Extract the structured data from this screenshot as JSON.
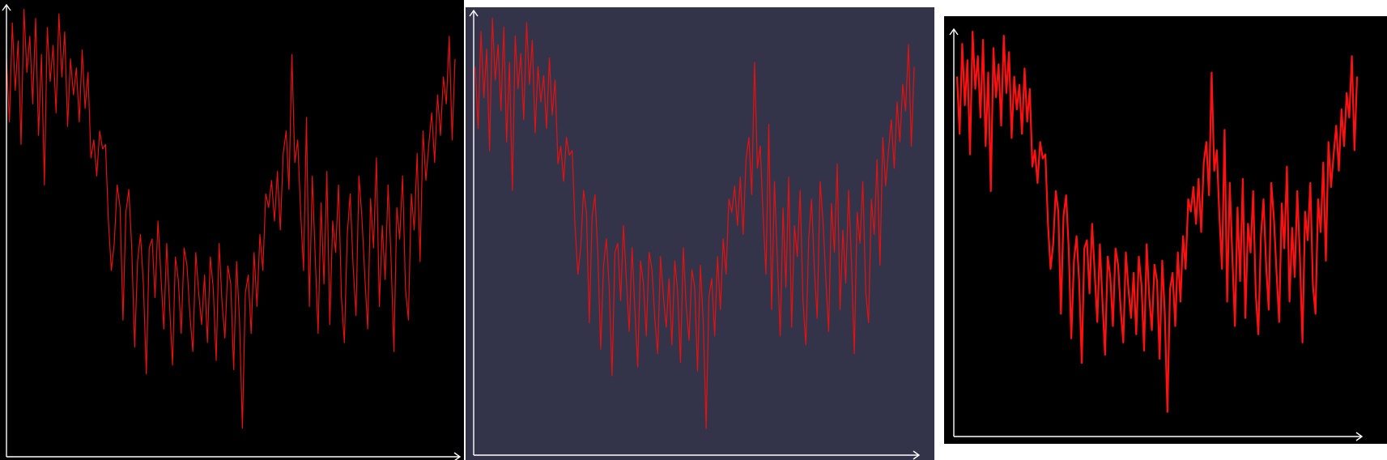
{
  "chart_data": [
    {
      "type": "line",
      "title": "",
      "xlabel": "",
      "ylabel": "",
      "series": [
        {
          "values": [
            0.88,
            0.74,
            0.96,
            0.81,
            0.92,
            0.69,
            0.99,
            0.85,
            0.93,
            0.78,
            0.97,
            0.71,
            0.89,
            0.6,
            0.95,
            0.83,
            0.91,
            0.76,
            0.98,
            0.84,
            0.94,
            0.73,
            0.88,
            0.8,
            0.86,
            0.74,
            0.9,
            0.77,
            0.85,
            0.66,
            0.7,
            0.62,
            0.72,
            0.68,
            0.69,
            0.52,
            0.41,
            0.47,
            0.6,
            0.55,
            0.3,
            0.54,
            0.59,
            0.46,
            0.24,
            0.43,
            0.49,
            0.38,
            0.18,
            0.46,
            0.48,
            0.35,
            0.52,
            0.4,
            0.28,
            0.47,
            0.33,
            0.2,
            0.44,
            0.39,
            0.27,
            0.46,
            0.42,
            0.31,
            0.23,
            0.45,
            0.36,
            0.29,
            0.4,
            0.25,
            0.44,
            0.37,
            0.21,
            0.47,
            0.34,
            0.26,
            0.42,
            0.38,
            0.19,
            0.43,
            0.3,
            0.06,
            0.36,
            0.4,
            0.27,
            0.45,
            0.33,
            0.49,
            0.41,
            0.58,
            0.55,
            0.61,
            0.52,
            0.63,
            0.5,
            0.67,
            0.72,
            0.59,
            0.89,
            0.65,
            0.7,
            0.54,
            0.41,
            0.75,
            0.33,
            0.62,
            0.44,
            0.27,
            0.56,
            0.38,
            0.63,
            0.29,
            0.52,
            0.45,
            0.6,
            0.35,
            0.25,
            0.49,
            0.58,
            0.42,
            0.31,
            0.62,
            0.53,
            0.4,
            0.28,
            0.57,
            0.46,
            0.66,
            0.33,
            0.51,
            0.39,
            0.6,
            0.44,
            0.23,
            0.55,
            0.48,
            0.62,
            0.37,
            0.3,
            0.58,
            0.5,
            0.67,
            0.43,
            0.72,
            0.61,
            0.69,
            0.76,
            0.65,
            0.8,
            0.71,
            0.84,
            0.78,
            0.93,
            0.7,
            0.88
          ]
        }
      ],
      "background": "#000000",
      "line_color": "#e8100f",
      "axis_color": "#ffffff",
      "grid": false
    },
    {
      "type": "line",
      "title": "",
      "xlabel": "",
      "ylabel": "",
      "series": [
        {
          "values": [
            0.88,
            0.74,
            0.96,
            0.81,
            0.92,
            0.69,
            0.99,
            0.85,
            0.93,
            0.78,
            0.97,
            0.71,
            0.89,
            0.6,
            0.95,
            0.83,
            0.91,
            0.76,
            0.98,
            0.84,
            0.94,
            0.73,
            0.88,
            0.8,
            0.86,
            0.74,
            0.9,
            0.77,
            0.85,
            0.66,
            0.7,
            0.62,
            0.72,
            0.68,
            0.69,
            0.52,
            0.41,
            0.47,
            0.6,
            0.55,
            0.3,
            0.54,
            0.59,
            0.46,
            0.24,
            0.43,
            0.49,
            0.38,
            0.18,
            0.46,
            0.48,
            0.35,
            0.52,
            0.4,
            0.28,
            0.47,
            0.33,
            0.2,
            0.44,
            0.39,
            0.27,
            0.46,
            0.42,
            0.31,
            0.23,
            0.45,
            0.36,
            0.29,
            0.4,
            0.25,
            0.44,
            0.37,
            0.21,
            0.47,
            0.34,
            0.26,
            0.42,
            0.38,
            0.19,
            0.43,
            0.3,
            0.06,
            0.36,
            0.4,
            0.27,
            0.45,
            0.33,
            0.49,
            0.41,
            0.58,
            0.55,
            0.61,
            0.52,
            0.63,
            0.5,
            0.67,
            0.72,
            0.59,
            0.89,
            0.65,
            0.7,
            0.54,
            0.41,
            0.75,
            0.33,
            0.62,
            0.44,
            0.27,
            0.56,
            0.38,
            0.63,
            0.29,
            0.52,
            0.45,
            0.6,
            0.35,
            0.25,
            0.49,
            0.58,
            0.42,
            0.31,
            0.62,
            0.53,
            0.4,
            0.28,
            0.57,
            0.46,
            0.66,
            0.33,
            0.51,
            0.39,
            0.6,
            0.44,
            0.23,
            0.55,
            0.48,
            0.62,
            0.37,
            0.3,
            0.58,
            0.5,
            0.67,
            0.43,
            0.72,
            0.61,
            0.69,
            0.76,
            0.65,
            0.8,
            0.71,
            0.84,
            0.78,
            0.93,
            0.7,
            0.88
          ]
        }
      ],
      "background": "#33344a",
      "line_color": "#e8100f",
      "axis_color": "#ffffff",
      "grid": false
    },
    {
      "type": "line",
      "title": "",
      "xlabel": "",
      "ylabel": "",
      "series": [
        {
          "values": [
            0.88,
            0.74,
            0.96,
            0.81,
            0.92,
            0.69,
            0.99,
            0.85,
            0.93,
            0.78,
            0.97,
            0.71,
            0.89,
            0.6,
            0.95,
            0.83,
            0.91,
            0.76,
            0.98,
            0.84,
            0.94,
            0.73,
            0.88,
            0.8,
            0.86,
            0.74,
            0.9,
            0.77,
            0.85,
            0.66,
            0.7,
            0.62,
            0.72,
            0.68,
            0.69,
            0.52,
            0.41,
            0.47,
            0.6,
            0.55,
            0.3,
            0.54,
            0.59,
            0.46,
            0.24,
            0.43,
            0.49,
            0.38,
            0.18,
            0.46,
            0.48,
            0.35,
            0.52,
            0.4,
            0.28,
            0.47,
            0.33,
            0.2,
            0.44,
            0.39,
            0.27,
            0.46,
            0.42,
            0.31,
            0.23,
            0.45,
            0.36,
            0.29,
            0.4,
            0.25,
            0.44,
            0.37,
            0.21,
            0.47,
            0.34,
            0.26,
            0.42,
            0.38,
            0.19,
            0.43,
            0.3,
            0.06,
            0.36,
            0.4,
            0.27,
            0.45,
            0.33,
            0.49,
            0.41,
            0.58,
            0.55,
            0.61,
            0.52,
            0.63,
            0.5,
            0.67,
            0.72,
            0.59,
            0.89,
            0.65,
            0.7,
            0.54,
            0.41,
            0.75,
            0.33,
            0.62,
            0.44,
            0.27,
            0.56,
            0.38,
            0.63,
            0.29,
            0.52,
            0.45,
            0.6,
            0.35,
            0.25,
            0.49,
            0.58,
            0.42,
            0.31,
            0.62,
            0.53,
            0.4,
            0.28,
            0.57,
            0.46,
            0.66,
            0.33,
            0.51,
            0.39,
            0.6,
            0.44,
            0.23,
            0.55,
            0.48,
            0.62,
            0.37,
            0.3,
            0.58,
            0.5,
            0.67,
            0.43,
            0.72,
            0.61,
            0.69,
            0.76,
            0.65,
            0.8,
            0.71,
            0.84,
            0.78,
            0.93,
            0.7,
            0.88
          ]
        }
      ],
      "background": "#000000",
      "line_color": "#ff1010",
      "axis_color": "#ffffff",
      "grid": false
    }
  ]
}
